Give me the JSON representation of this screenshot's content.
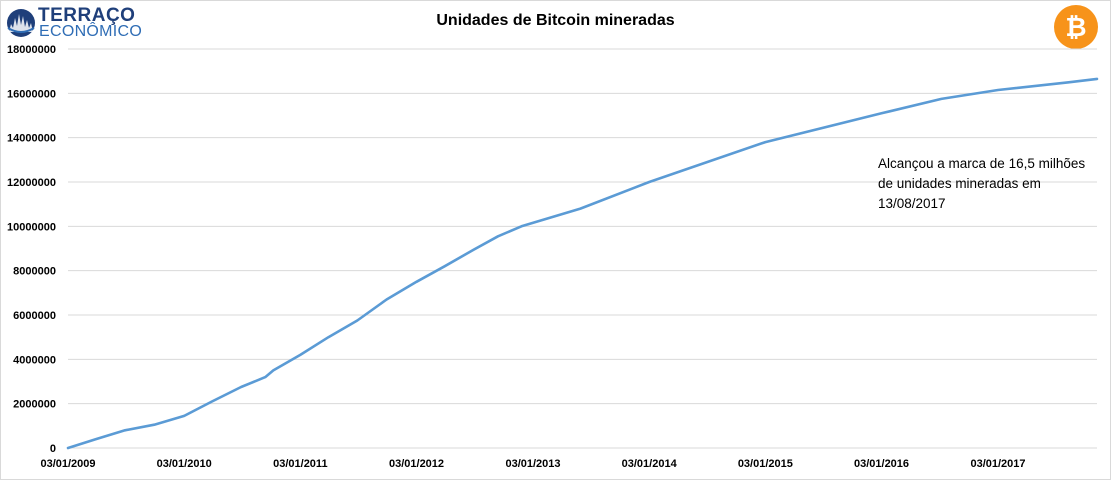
{
  "logo": {
    "word1": "TERRAÇO",
    "word2": "ECONÔMICO",
    "icon": "globe-skyline-icon"
  },
  "badge": {
    "icon": "bitcoin-icon",
    "symbol": "₿",
    "color": "#f7931a"
  },
  "annotation": "Alcançou a marca de 16,5 milhões de unidades mineradas em 13/08/2017",
  "colors": {
    "line": "#5b9bd5",
    "grid": "#d9d9d9",
    "logo_dark": "#1f3f7a",
    "logo_blue": "#2f6db5"
  },
  "chart_data": {
    "type": "line",
    "title": "Unidades de Bitcoin mineradas",
    "xlabel": "",
    "ylabel": "",
    "ylim": [
      0,
      18000000
    ],
    "xlim": [
      "2009-01-03",
      "2017-11-10"
    ],
    "grid": true,
    "y_ticks": [
      "0",
      "2000000",
      "4000000",
      "6000000",
      "8000000",
      "10000000",
      "12000000",
      "14000000",
      "16000000",
      "18000000"
    ],
    "x_ticks": [
      "03/01/2009",
      "03/01/2010",
      "03/01/2011",
      "03/01/2012",
      "03/01/2013",
      "03/01/2014",
      "03/01/2015",
      "03/01/2016",
      "03/01/2017"
    ],
    "series": [
      {
        "points": [
          [
            "2009-01-03",
            0
          ],
          [
            "2009-04-01",
            400000
          ],
          [
            "2009-07-01",
            800000
          ],
          [
            "2009-10-01",
            1050000
          ],
          [
            "2010-01-03",
            1450000
          ],
          [
            "2010-04-01",
            2100000
          ],
          [
            "2010-07-01",
            2750000
          ],
          [
            "2010-09-15",
            3200000
          ],
          [
            "2010-10-10",
            3500000
          ],
          [
            "2011-01-03",
            4200000
          ],
          [
            "2011-04-01",
            5000000
          ],
          [
            "2011-07-01",
            5750000
          ],
          [
            "2011-10-01",
            6700000
          ],
          [
            "2012-01-03",
            7500000
          ],
          [
            "2012-04-01",
            8200000
          ],
          [
            "2012-07-01",
            8950000
          ],
          [
            "2012-09-15",
            9550000
          ],
          [
            "2012-11-28",
            10000000
          ],
          [
            "2013-06-01",
            10800000
          ],
          [
            "2014-01-03",
            12000000
          ],
          [
            "2015-01-03",
            13800000
          ],
          [
            "2016-01-03",
            15100000
          ],
          [
            "2016-07-09",
            15750000
          ],
          [
            "2017-01-03",
            16150000
          ],
          [
            "2017-08-13",
            16500000
          ],
          [
            "2017-11-10",
            16650000
          ]
        ]
      }
    ]
  }
}
